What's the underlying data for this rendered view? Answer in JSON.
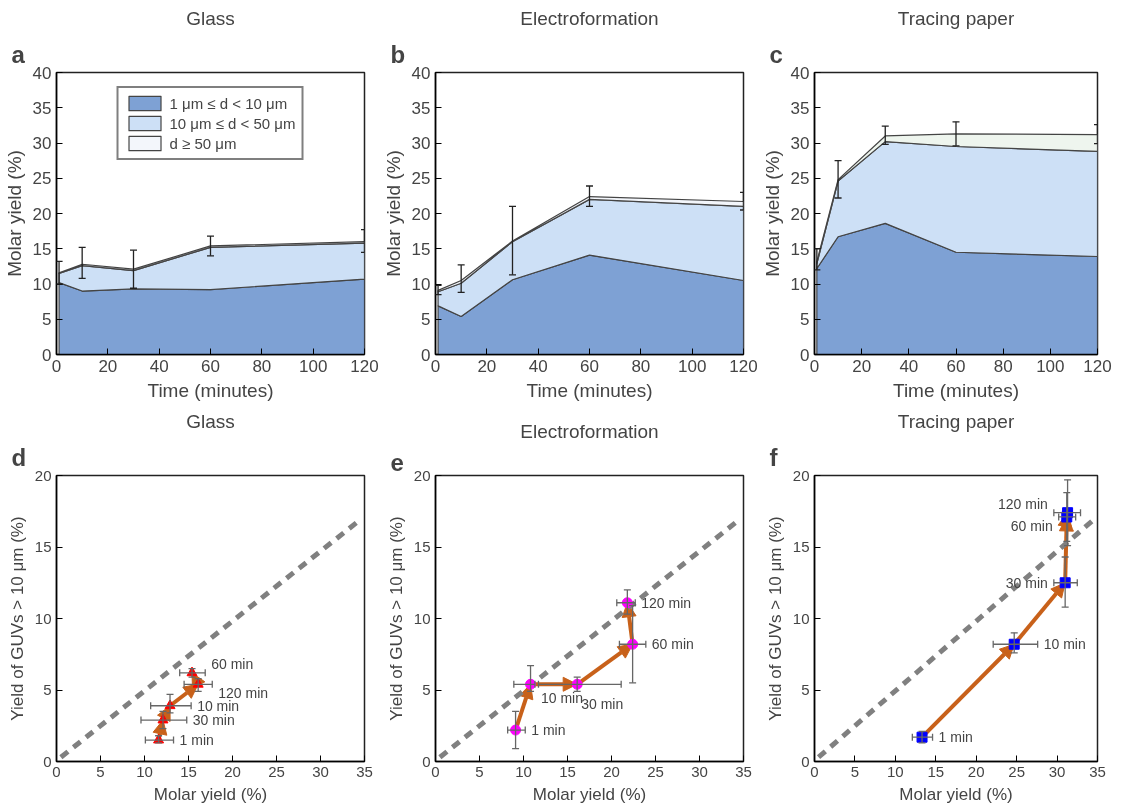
{
  "chart_data": [
    {
      "type": "area",
      "title": "Glass",
      "xlabel": "Time (minutes)",
      "ylabel": "Molar yield (%)",
      "stacked": true,
      "x": [
        1,
        10,
        30,
        60,
        120
      ],
      "xlim": [
        0,
        120
      ],
      "ylim": [
        0,
        40
      ],
      "xticks": [
        0,
        20,
        40,
        60,
        80,
        100,
        120
      ],
      "yticks": [
        0,
        5,
        10,
        15,
        20,
        25,
        30,
        35,
        40
      ],
      "grid": false,
      "legend": "top",
      "annotations": [
        "a"
      ],
      "series": [
        {
          "name": "1 μm ≤ d < 10 μm",
          "color": "#7ea1d4",
          "values": [
            10.2,
            9.0,
            9.3,
            9.2,
            10.7
          ]
        },
        {
          "name": "10 μm ≤ d < 50 μm",
          "color": "#cde0f6",
          "values": [
            1.3,
            3.6,
            2.6,
            6.0,
            5.1
          ]
        },
        {
          "name": "d ≥ 50 μm",
          "color": "#f3f6fb",
          "values": [
            0.1,
            0.2,
            0.2,
            0.2,
            0.2
          ],
          "errors": [
            [
              10.0,
              13.2
            ],
            [
              10.8,
              15.2
            ],
            [
              9.4,
              14.8
            ],
            [
              14.0,
              16.8
            ],
            [
              14.5,
              17.7
            ]
          ]
        }
      ]
    },
    {
      "type": "area",
      "title": "Electroformation",
      "xlabel": "Time (minutes)",
      "ylabel": "Molar yield (%)",
      "stacked": true,
      "x": [
        1,
        10,
        30,
        60,
        120
      ],
      "xlim": [
        0,
        120
      ],
      "ylim": [
        0,
        40
      ],
      "xticks": [
        0,
        20,
        40,
        60,
        80,
        100,
        120
      ],
      "yticks": [
        0,
        5,
        10,
        15,
        20,
        25,
        30,
        35,
        40
      ],
      "grid": false,
      "annotations": [
        "b"
      ],
      "series": [
        {
          "color": "#7ea1d4",
          "values": [
            6.9,
            5.4,
            10.6,
            14.1,
            10.5
          ]
        },
        {
          "color": "#cde0f6",
          "values": [
            2.0,
            4.7,
            5.4,
            7.9,
            10.5
          ]
        },
        {
          "color": "#f3f6fb",
          "values": [
            0.2,
            0.4,
            0.1,
            0.4,
            0.7
          ],
          "errors": [
            [
              8.5,
              9.8
            ],
            [
              8.8,
              12.7
            ],
            [
              11.3,
              21.0
            ],
            [
              21.0,
              23.9
            ],
            [
              20.5,
              23.0
            ]
          ]
        }
      ]
    },
    {
      "type": "area",
      "title": "Tracing paper",
      "xlabel": "Time (minutes)",
      "ylabel": "Molar yield (%)",
      "stacked": true,
      "x": [
        1,
        10,
        30,
        60,
        120
      ],
      "xlim": [
        0,
        120
      ],
      "ylim": [
        0,
        40
      ],
      "xticks": [
        0,
        20,
        40,
        60,
        80,
        100,
        120
      ],
      "yticks": [
        0,
        5,
        10,
        15,
        20,
        25,
        30,
        35,
        40
      ],
      "grid": false,
      "annotations": [
        "c"
      ],
      "series": [
        {
          "color": "#7ea1d4",
          "values": [
            12.2,
            16.7,
            18.6,
            14.5,
            13.9
          ]
        },
        {
          "color": "#cde0f6",
          "values": [
            0.7,
            7.9,
            11.6,
            15.0,
            14.9
          ]
        },
        {
          "color": "#eef5ee",
          "values": [
            0.3,
            0.2,
            0.8,
            1.8,
            2.4
          ],
          "errors": [
            [
              12.0,
              15.0
            ],
            [
              22.2,
              27.5
            ],
            [
              29.8,
              32.4
            ],
            [
              29.6,
              33.0
            ],
            [
              29.9,
              32.6
            ]
          ]
        }
      ]
    },
    {
      "type": "scatter",
      "title": "Glass",
      "xlabel": "Molar yield (%)",
      "ylabel": "Yield of GUVs > 10 μm (%)",
      "xlim": [
        0,
        35
      ],
      "ylim": [
        0,
        20
      ],
      "xticks": [
        0,
        5,
        10,
        15,
        20,
        25,
        30,
        35
      ],
      "yticks": [
        0,
        5,
        10,
        15,
        20
      ],
      "grid": false,
      "annotations": [
        "d",
        {
          "text": "60 min",
          "x": 15.4,
          "y": 6.2
        },
        {
          "text": "120 min",
          "x": 16.1,
          "y": 5.4
        },
        {
          "text": "10 min",
          "x": 12.9,
          "y": 3.9
        },
        {
          "text": "30 min",
          "x": 12.1,
          "y": 2.9
        },
        {
          "text": "1 min",
          "x": 11.6,
          "y": 1.5
        }
      ],
      "series": [
        {
          "type": "line",
          "x": [
            0.5,
            34.5
          ],
          "values": [
            0.3,
            16.9
          ],
          "color": "#808080",
          "line_style": "dashed",
          "marker": "none"
        },
        {
          "color": "#ff0000",
          "marker": "triangle",
          "x": [
            11.6,
            12.1,
            12.9,
            16.1,
            15.4
          ],
          "values": [
            1.5,
            2.9,
            3.9,
            5.4,
            6.2
          ],
          "errors": [
            [
              1.3,
              1.8
            ],
            [
              2.3,
              3.5
            ],
            [
              3.4,
              4.7
            ],
            [
              4.9,
              5.8
            ],
            [
              5.9,
              6.5
            ]
          ],
          "xerrors": [
            [
              10.1,
              13.3
            ],
            [
              9.6,
              14.8
            ],
            [
              10.7,
              15.3
            ],
            [
              14.5,
              17.7
            ],
            [
              14.0,
              16.9
            ]
          ]
        }
      ]
    },
    {
      "type": "scatter",
      "title": "Electroformation",
      "xlabel": "Molar yield (%)",
      "ylabel": "Yield of GUVs > 10 μm (%)",
      "xlim": [
        0,
        35
      ],
      "ylim": [
        0,
        20
      ],
      "xticks": [
        0,
        5,
        10,
        15,
        20,
        25,
        30,
        35
      ],
      "yticks": [
        0,
        5,
        10,
        15,
        20
      ],
      "grid": false,
      "annotations": [
        "e",
        {
          "text": "10 min",
          "x": 10.8,
          "y": 5.4
        },
        {
          "text": "120 min",
          "x": 21.8,
          "y": 11.1
        },
        {
          "text": "60 min",
          "x": 22.4,
          "y": 8.2
        },
        {
          "text": "30 min",
          "x": 16.1,
          "y": 5.4
        },
        {
          "text": "1 min",
          "x": 9.1,
          "y": 2.2
        }
      ],
      "series": [
        {
          "type": "line",
          "x": [
            0.5,
            34.5
          ],
          "values": [
            0.3,
            16.9
          ],
          "color": "#808080",
          "line_style": "dashed",
          "marker": "none"
        },
        {
          "color": "#ff00ff",
          "marker": "circle",
          "x": [
            9.1,
            10.8,
            16.1,
            22.4,
            21.8
          ],
          "values": [
            2.2,
            5.4,
            5.4,
            8.2,
            11.1
          ],
          "errors": [
            [
              0.9,
              3.5
            ],
            [
              4.9,
              6.7
            ],
            [
              4.9,
              5.9
            ],
            [
              5.5,
              10.9
            ],
            [
              10.3,
              12.0
            ]
          ],
          "xerrors": [
            [
              8.2,
              10.2
            ],
            [
              8.9,
              11.3
            ],
            [
              11.7,
              21.1
            ],
            [
              20.9,
              23.9
            ],
            [
              20.6,
              22.7
            ]
          ]
        }
      ]
    },
    {
      "type": "scatter",
      "title": "Tracing paper",
      "xlabel": "Molar yield (%)",
      "ylabel": "Yield of GUVs > 10 μm (%)",
      "xlim": [
        0,
        35
      ],
      "ylim": [
        0,
        20
      ],
      "xticks": [
        0,
        5,
        10,
        15,
        20,
        25,
        30,
        35
      ],
      "yticks": [
        0,
        5,
        10,
        15,
        20
      ],
      "grid": false,
      "annotations": [
        "f",
        {
          "text": "120 min",
          "x": 31.3,
          "y": 17.4
        },
        {
          "text": "60 min",
          "x": 31.2,
          "y": 17.1
        },
        {
          "text": "30 min",
          "x": 31.0,
          "y": 12.5
        },
        {
          "text": "10 min",
          "x": 24.7,
          "y": 8.2
        },
        {
          "text": "1 min",
          "x": 13.3,
          "y": 1.7
        }
      ],
      "series": [
        {
          "type": "line",
          "x": [
            0.5,
            34.5
          ],
          "values": [
            0.3,
            16.9
          ],
          "color": "#808080",
          "line_style": "dashed",
          "marker": "none"
        },
        {
          "color": "#0000ff",
          "marker": "square",
          "x": [
            13.3,
            24.7,
            31.0,
            31.2,
            31.3
          ],
          "values": [
            1.7,
            8.2,
            12.5,
            17.1,
            17.4
          ],
          "errors": [
            [
              1.3,
              2.1
            ],
            [
              7.6,
              9.0
            ],
            [
              10.8,
              14.3
            ],
            [
              15.4,
              18.8
            ],
            [
              15.1,
              19.7
            ]
          ],
          "xerrors": [
            [
              12.1,
              14.6
            ],
            [
              22.1,
              27.6
            ],
            [
              29.6,
              32.5
            ],
            [
              30.2,
              32.3
            ],
            [
              29.6,
              32.9
            ]
          ]
        }
      ]
    }
  ]
}
